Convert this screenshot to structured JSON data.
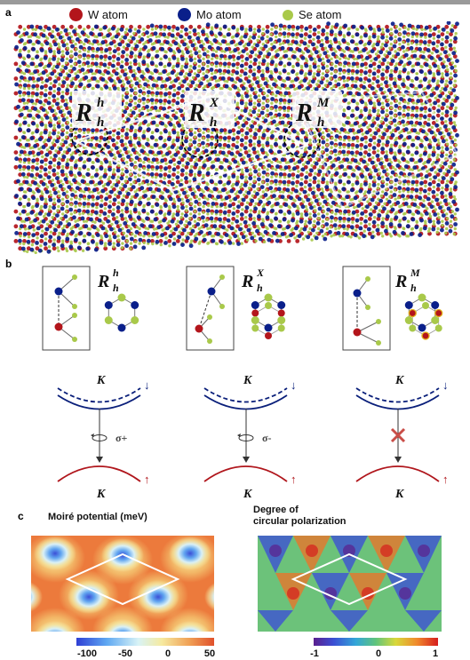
{
  "colors": {
    "W": "#b3151b",
    "Mo": "#0a1f8a",
    "Se": "#a9c94a",
    "k_upper": "#0a1f7a",
    "k_lower": "#b0161c",
    "forbidden": "#c94d47"
  },
  "panel_a": {
    "label": "a",
    "legend": [
      {
        "name": "W atom",
        "color": "#b3151b"
      },
      {
        "name": "Mo atom",
        "color": "#0a1f8a"
      },
      {
        "name": "Se atom",
        "color": "#a9c94a"
      }
    ],
    "stackings": [
      {
        "base": "R",
        "sup": "h",
        "sub": "h"
      },
      {
        "base": "R",
        "sup": "X",
        "sub": "h"
      },
      {
        "base": "R",
        "sup": "M",
        "sub": "h"
      }
    ]
  },
  "panel_b": {
    "label": "b",
    "stackings": [
      {
        "base": "R",
        "sup": "h",
        "sub": "h"
      },
      {
        "base": "R",
        "sup": "X",
        "sub": "h"
      },
      {
        "base": "R",
        "sup": "M",
        "sub": "h"
      }
    ],
    "transitions": [
      {
        "top_label": "K",
        "bottom_label": "K",
        "spin_up": "↓",
        "spin_down": "↑",
        "polarization": "σ+",
        "allowed": true
      },
      {
        "top_label": "K",
        "bottom_label": "K",
        "spin_up": "↓",
        "spin_down": "↑",
        "polarization": "σ-",
        "allowed": true
      },
      {
        "top_label": "K",
        "bottom_label": "K",
        "spin_up": "↓",
        "spin_down": "↑",
        "polarization": "",
        "allowed": false
      }
    ]
  },
  "panel_c": {
    "label": "c",
    "left": {
      "title_lines": [
        "Moiré potential (meV)"
      ],
      "ticks": [
        "-100",
        "-50",
        "0",
        "50"
      ]
    },
    "right": {
      "title_lines": [
        "Degree of",
        "circular polarization"
      ],
      "ticks": [
        "-1",
        "0",
        "1"
      ]
    }
  }
}
